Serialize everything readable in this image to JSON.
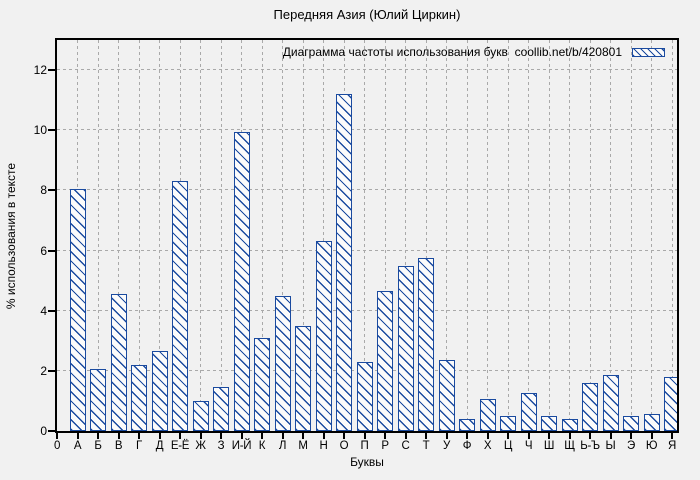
{
  "title": "Передняя Азия (Юлий Циркин)",
  "legend": {
    "label": "Диаграмма частоты использования букв  coollib.net/b/420801"
  },
  "colors": {
    "bar_hatch": "#1a4a9f",
    "grid": "#a9a9a9",
    "axis": "#000000",
    "background": "#f1f1f1",
    "bar_fill": "#fbfbfb"
  },
  "chart_data": {
    "type": "bar",
    "title": "Передняя Азия (Юлий Циркин)",
    "legend_label": "Диаграмма частоты использования букв  coollib.net/b/420801",
    "xlabel": "Буквы",
    "ylabel": "% использования в тексте",
    "ylim": [
      0,
      13
    ],
    "yticks": [
      0,
      2,
      4,
      6,
      8,
      10,
      12
    ],
    "grid": true,
    "legend_position": "top-right-inside",
    "bar_style": "blue diagonal hatch, white fill",
    "categories": [
      "0",
      "А",
      "Б",
      "В",
      "Г",
      "Д",
      "Е-Ё",
      "Ж",
      "З",
      "И-Й",
      "К",
      "Л",
      "М",
      "Н",
      "О",
      "П",
      "Р",
      "С",
      "Т",
      "У",
      "Ф",
      "Х",
      "Ц",
      "Ч",
      "Ш",
      "Щ",
      "Ь-Ъ",
      "Ы",
      "Э",
      "Ю",
      "Я"
    ],
    "values": [
      0,
      8.05,
      2.05,
      4.55,
      2.2,
      2.65,
      8.3,
      1.0,
      1.45,
      9.95,
      3.1,
      4.5,
      3.5,
      6.3,
      11.2,
      2.3,
      4.65,
      5.5,
      5.75,
      2.35,
      0.4,
      1.05,
      0.5,
      1.25,
      0.5,
      0.4,
      1.6,
      1.85,
      0.5,
      0.55,
      1.8
    ]
  }
}
